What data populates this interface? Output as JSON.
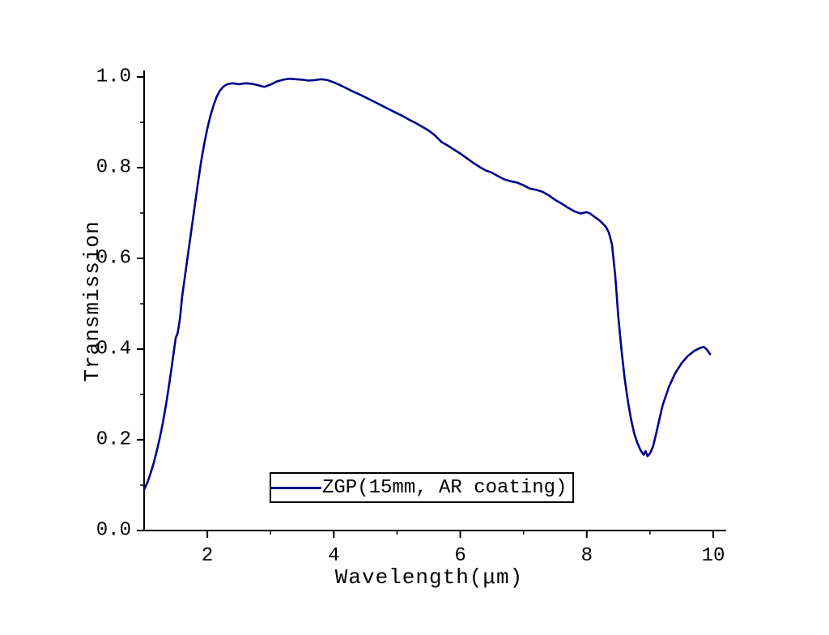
{
  "page": {
    "background": "#ffffff"
  },
  "chart_data": {
    "type": "line",
    "title": "",
    "xlabel": "Wavelength(μm)",
    "ylabel": "Transmission",
    "xlim": [
      1,
      10
    ],
    "ylim": [
      0.0,
      1.0
    ],
    "x_ticks": [
      2,
      4,
      6,
      8,
      10
    ],
    "x_tick_labels": [
      "2",
      "4",
      "6",
      "8",
      "10"
    ],
    "x_minor_ticks": [
      3,
      5,
      7,
      9
    ],
    "y_ticks": [
      0.0,
      0.2,
      0.4,
      0.6,
      0.8,
      1.0
    ],
    "y_tick_labels": [
      "0.0",
      "0.2",
      "0.4",
      "0.6",
      "0.8",
      "1.0"
    ],
    "y_minor_ticks": [
      0.1,
      0.3,
      0.5,
      0.7,
      0.9
    ],
    "grid": false,
    "legend": {
      "position": "bottom-center-inside",
      "entries": [
        {
          "label": "ZGP(15mm, AR coating)",
          "color": "#00008B"
        }
      ]
    },
    "series": [
      {
        "name": "ZGP(15mm, AR coating)",
        "color": "#00008B",
        "points": [
          [
            1.0,
            0.09
          ],
          [
            1.05,
            0.105
          ],
          [
            1.1,
            0.125
          ],
          [
            1.15,
            0.148
          ],
          [
            1.2,
            0.175
          ],
          [
            1.25,
            0.205
          ],
          [
            1.3,
            0.24
          ],
          [
            1.35,
            0.28
          ],
          [
            1.4,
            0.325
          ],
          [
            1.45,
            0.375
          ],
          [
            1.48,
            0.405
          ],
          [
            1.5,
            0.425
          ],
          [
            1.53,
            0.435
          ],
          [
            1.57,
            0.47
          ],
          [
            1.6,
            0.515
          ],
          [
            1.65,
            0.565
          ],
          [
            1.7,
            0.615
          ],
          [
            1.75,
            0.665
          ],
          [
            1.8,
            0.715
          ],
          [
            1.85,
            0.765
          ],
          [
            1.9,
            0.812
          ],
          [
            1.95,
            0.852
          ],
          [
            2.0,
            0.886
          ],
          [
            2.05,
            0.915
          ],
          [
            2.1,
            0.938
          ],
          [
            2.15,
            0.957
          ],
          [
            2.2,
            0.97
          ],
          [
            2.25,
            0.978
          ],
          [
            2.3,
            0.983
          ],
          [
            2.35,
            0.985
          ],
          [
            2.4,
            0.986
          ],
          [
            2.5,
            0.984
          ],
          [
            2.6,
            0.986
          ],
          [
            2.7,
            0.985
          ],
          [
            2.8,
            0.982
          ],
          [
            2.9,
            0.978
          ],
          [
            3.0,
            0.983
          ],
          [
            3.1,
            0.99
          ],
          [
            3.2,
            0.994
          ],
          [
            3.3,
            0.996
          ],
          [
            3.4,
            0.995
          ],
          [
            3.5,
            0.994
          ],
          [
            3.6,
            0.992
          ],
          [
            3.7,
            0.993
          ],
          [
            3.8,
            0.995
          ],
          [
            3.9,
            0.993
          ],
          [
            4.0,
            0.988
          ],
          [
            4.1,
            0.982
          ],
          [
            4.2,
            0.975
          ],
          [
            4.3,
            0.968
          ],
          [
            4.4,
            0.962
          ],
          [
            4.5,
            0.955
          ],
          [
            4.6,
            0.948
          ],
          [
            4.7,
            0.941
          ],
          [
            4.8,
            0.934
          ],
          [
            4.9,
            0.927
          ],
          [
            5.0,
            0.92
          ],
          [
            5.1,
            0.913
          ],
          [
            5.2,
            0.905
          ],
          [
            5.3,
            0.898
          ],
          [
            5.4,
            0.89
          ],
          [
            5.5,
            0.882
          ],
          [
            5.6,
            0.871
          ],
          [
            5.7,
            0.857
          ],
          [
            5.8,
            0.849
          ],
          [
            5.9,
            0.84
          ],
          [
            6.0,
            0.831
          ],
          [
            6.1,
            0.821
          ],
          [
            6.2,
            0.811
          ],
          [
            6.3,
            0.802
          ],
          [
            6.4,
            0.794
          ],
          [
            6.5,
            0.789
          ],
          [
            6.6,
            0.781
          ],
          [
            6.7,
            0.774
          ],
          [
            6.8,
            0.77
          ],
          [
            6.9,
            0.767
          ],
          [
            7.0,
            0.761
          ],
          [
            7.1,
            0.754
          ],
          [
            7.2,
            0.751
          ],
          [
            7.3,
            0.747
          ],
          [
            7.4,
            0.739
          ],
          [
            7.5,
            0.729
          ],
          [
            7.6,
            0.721
          ],
          [
            7.7,
            0.712
          ],
          [
            7.8,
            0.704
          ],
          [
            7.9,
            0.699
          ],
          [
            8.0,
            0.702
          ],
          [
            8.05,
            0.699
          ],
          [
            8.1,
            0.694
          ],
          [
            8.2,
            0.684
          ],
          [
            8.3,
            0.67
          ],
          [
            8.35,
            0.657
          ],
          [
            8.4,
            0.63
          ],
          [
            8.45,
            0.563
          ],
          [
            8.5,
            0.47
          ],
          [
            8.55,
            0.398
          ],
          [
            8.6,
            0.335
          ],
          [
            8.65,
            0.285
          ],
          [
            8.7,
            0.245
          ],
          [
            8.75,
            0.214
          ],
          [
            8.8,
            0.193
          ],
          [
            8.85,
            0.177
          ],
          [
            8.9,
            0.167
          ],
          [
            8.93,
            0.175
          ],
          [
            8.96,
            0.164
          ],
          [
            9.0,
            0.17
          ],
          [
            9.05,
            0.186
          ],
          [
            9.1,
            0.215
          ],
          [
            9.15,
            0.246
          ],
          [
            9.2,
            0.276
          ],
          [
            9.3,
            0.317
          ],
          [
            9.4,
            0.347
          ],
          [
            9.5,
            0.369
          ],
          [
            9.6,
            0.385
          ],
          [
            9.7,
            0.396
          ],
          [
            9.8,
            0.403
          ],
          [
            9.85,
            0.405
          ],
          [
            9.9,
            0.399
          ],
          [
            9.95,
            0.389
          ]
        ]
      }
    ]
  }
}
